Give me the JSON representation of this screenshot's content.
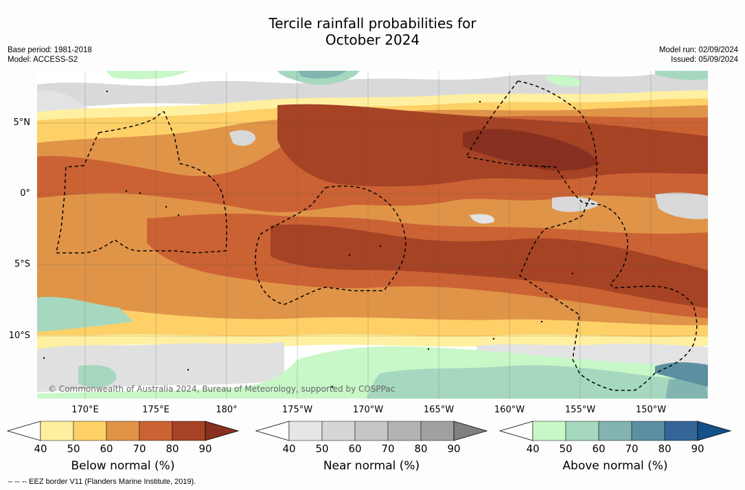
{
  "title": {
    "line1": "Tercile rainfall probabilities for",
    "line2": "October 2024"
  },
  "meta_left": {
    "base_period": "Base period: 1981-2018",
    "model": "Model: ACCESS-S2"
  },
  "meta_right": {
    "model_run": "Model run: 02/09/2024",
    "issued": "Issued: 05/09/2024"
  },
  "lat_labels": [
    "5°N",
    "0°",
    "5°S",
    "10°S"
  ],
  "lon_labels": [
    "170°E",
    "175°E",
    "180°",
    "175°W",
    "170°W",
    "165°W",
    "160°W",
    "155°W",
    "150°W"
  ],
  "copyright": "© Commonwealth of Australia 2024, Bureau of Meteorology, supported by COSPPac",
  "colorbars": {
    "below": {
      "label": "Below normal (%)",
      "ticks": [
        "40",
        "50",
        "60",
        "70",
        "80",
        "90"
      ],
      "colors": [
        "#fef0a0",
        "#fdd068",
        "#e09448",
        "#cb6234",
        "#a64325",
        "#883020"
      ]
    },
    "near": {
      "label": "Near normal (%)",
      "ticks": [
        "40",
        "50",
        "60",
        "70",
        "80",
        "90"
      ],
      "colors": [
        "#e6e6e6",
        "#d6d6d6",
        "#c6c6c6",
        "#b3b3b3",
        "#a0a0a0",
        "#808080"
      ]
    },
    "above": {
      "label": "Above normal (%)",
      "ticks": [
        "40",
        "50",
        "60",
        "70",
        "80",
        "90"
      ],
      "colors": [
        "#c8f7c8",
        "#a5d8be",
        "#82b4b0",
        "#5b90a0",
        "#346596",
        "#154f88"
      ]
    }
  },
  "footnote": "-- -- -- EEZ border V11 (Flanders Marine Institute, 2019)."
}
